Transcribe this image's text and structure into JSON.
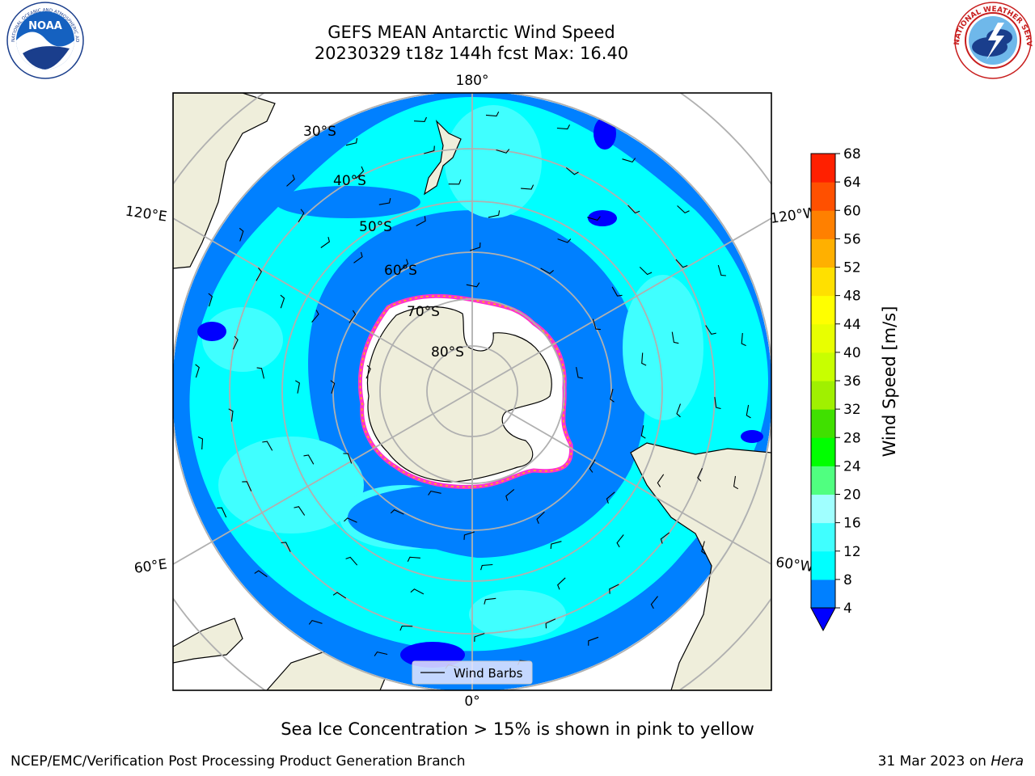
{
  "title": {
    "line1": "GEFS MEAN Antarctic Wind Speed",
    "line2": "20230329 t18z 144h fcst   Max: 16.40"
  },
  "logos": {
    "left": {
      "name": "NOAA",
      "ring_text": "NATIONAL OCEANIC AND ATMOSPHERIC ADMINISTRATION · U.S. DEPARTMENT OF COMMERCE"
    },
    "right": {
      "name": "NATIONAL WEATHER SERVICE"
    }
  },
  "map": {
    "longitude_labels": [
      "180°",
      "120°E",
      "120°W",
      "60°E",
      "60°W",
      "0°"
    ],
    "latitude_labels": [
      "30°S",
      "40°S",
      "50°S",
      "60°S",
      "70°S",
      "80°S"
    ],
    "legend_label": "Wind Barbs",
    "colors": {
      "land": "#efeedb",
      "ice": "#ffffff",
      "ice_edge": "#ff33cc",
      "ice_edge2": "#ffc000",
      "grid": "#b0b0b0"
    }
  },
  "colorbar": {
    "label": "Wind Speed [m/s]",
    "ticks": [
      "4",
      "8",
      "12",
      "16",
      "20",
      "24",
      "28",
      "32",
      "36",
      "40",
      "44",
      "48",
      "52",
      "56",
      "60",
      "64",
      "68"
    ],
    "colors": [
      "#0080ff",
      "#00ffff",
      "#40ffff",
      "#a0ffff",
      "#50ff80",
      "#00ff00",
      "#40e000",
      "#a0f000",
      "#c8ff00",
      "#e8ff00",
      "#ffff00",
      "#ffe000",
      "#ffb000",
      "#ff8000",
      "#ff5000",
      "#ff2000"
    ],
    "under_color": "#0000ff"
  },
  "footnote": "Sea Ice Concentration > 15% is shown in pink to yellow",
  "credit": "NCEP/EMC/Verification Post Processing Product Generation Branch",
  "date_text": "31 Mar 2023 on ",
  "date_host": "Hera"
}
